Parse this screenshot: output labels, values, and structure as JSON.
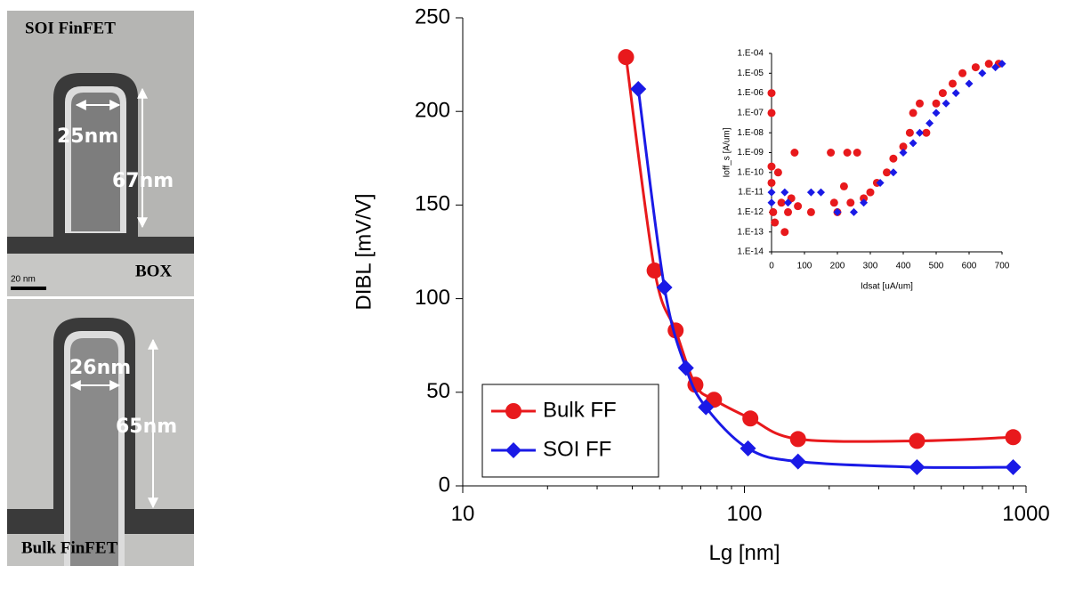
{
  "images": [
    {
      "title": "SOI FinFET",
      "width_label": "25nm",
      "height_label": "67nm",
      "base_label": "BOX",
      "scale_label": "20 nm"
    },
    {
      "title": "Bulk FinFET",
      "width_label": "26nm",
      "height_label": "65nm"
    }
  ],
  "chart_data": [
    {
      "type": "line",
      "x_label": "Lg [nm]",
      "y_label": "DIBL [mV/V]",
      "xscale": "log",
      "xlim": [
        10,
        1000
      ],
      "xticks": [
        10,
        100,
        1000
      ],
      "ylim": [
        0,
        250
      ],
      "yticks": [
        0,
        50,
        100,
        150,
        200,
        250
      ],
      "legend": "lower left",
      "series": [
        {
          "name": "Bulk FF",
          "color": "#e8191c",
          "marker": "circle",
          "x": [
            38,
            48,
            57,
            67,
            78,
            105,
            155,
            410,
            900
          ],
          "values": [
            229,
            115,
            83,
            54,
            46,
            36,
            25,
            24,
            26
          ]
        },
        {
          "name": "SOI FF",
          "color": "#1a1ae6",
          "marker": "diamond",
          "x": [
            42,
            52,
            62,
            73,
            103,
            155,
            410,
            900
          ],
          "values": [
            212,
            106,
            63,
            42,
            20,
            13,
            10,
            10
          ]
        }
      ]
    },
    {
      "type": "scatter",
      "x_label": "Idsat [uA/um]",
      "y_label": "Ioff_s [A/um]",
      "yscale": "log",
      "xlim": [
        0,
        700
      ],
      "xticks": [
        0,
        100,
        200,
        300,
        400,
        500,
        600,
        700
      ],
      "ylim": [
        1e-14,
        0.0001
      ],
      "yticks": [
        {
          "value": 1e-14,
          "label": "1.E-14"
        },
        {
          "value": 1e-13,
          "label": "1.E-13"
        },
        {
          "value": 1e-12,
          "label": "1.E-12"
        },
        {
          "value": 1e-11,
          "label": "1.E-11"
        },
        {
          "value": 1e-10,
          "label": "1.E-10"
        },
        {
          "value": 1e-09,
          "label": "1.E-09"
        },
        {
          "value": 1e-08,
          "label": "1.E-08"
        },
        {
          "value": 1e-07,
          "label": "1.E-07"
        },
        {
          "value": 1e-06,
          "label": "1.E-06"
        },
        {
          "value": 1e-05,
          "label": "1.E-05"
        },
        {
          "value": 0.0001,
          "label": "1.E-04"
        }
      ],
      "series": [
        {
          "color": "#e8191c",
          "marker": "circle",
          "x": [
            0,
            0,
            0,
            0,
            5,
            10,
            20,
            30,
            40,
            50,
            60,
            70,
            80,
            120,
            180,
            190,
            200,
            220,
            230,
            240,
            260,
            280,
            300,
            320,
            350,
            370,
            400,
            420,
            430,
            450,
            470,
            500,
            520,
            550,
            580,
            620,
            660,
            690
          ],
          "values": [
            1e-06,
            1e-07,
            2e-10,
            3e-11,
            1e-12,
            3e-13,
            1e-10,
            3e-12,
            1e-13,
            1e-12,
            5e-12,
            1e-09,
            2e-12,
            1e-12,
            1e-09,
            3e-12,
            1e-12,
            2e-11,
            1e-09,
            3e-12,
            1e-09,
            5e-12,
            1e-11,
            3e-11,
            1e-10,
            5e-10,
            2e-09,
            1e-08,
            1e-07,
            3e-07,
            1e-08,
            3e-07,
            1e-06,
            3e-06,
            1e-05,
            2e-05,
            3e-05,
            3e-05
          ]
        },
        {
          "color": "#1a1ae6",
          "marker": "diamond",
          "x": [
            0,
            0,
            40,
            50,
            120,
            150,
            200,
            250,
            280,
            330,
            370,
            400,
            430,
            450,
            480,
            500,
            530,
            560,
            600,
            640,
            680,
            700
          ],
          "values": [
            1e-11,
            3e-12,
            1e-11,
            3e-12,
            1e-11,
            1e-11,
            1e-12,
            1e-12,
            3e-12,
            3e-11,
            1e-10,
            1e-09,
            3e-09,
            1e-08,
            3e-08,
            1e-07,
            3e-07,
            1e-06,
            3e-06,
            1e-05,
            2e-05,
            3e-05
          ]
        }
      ]
    }
  ]
}
